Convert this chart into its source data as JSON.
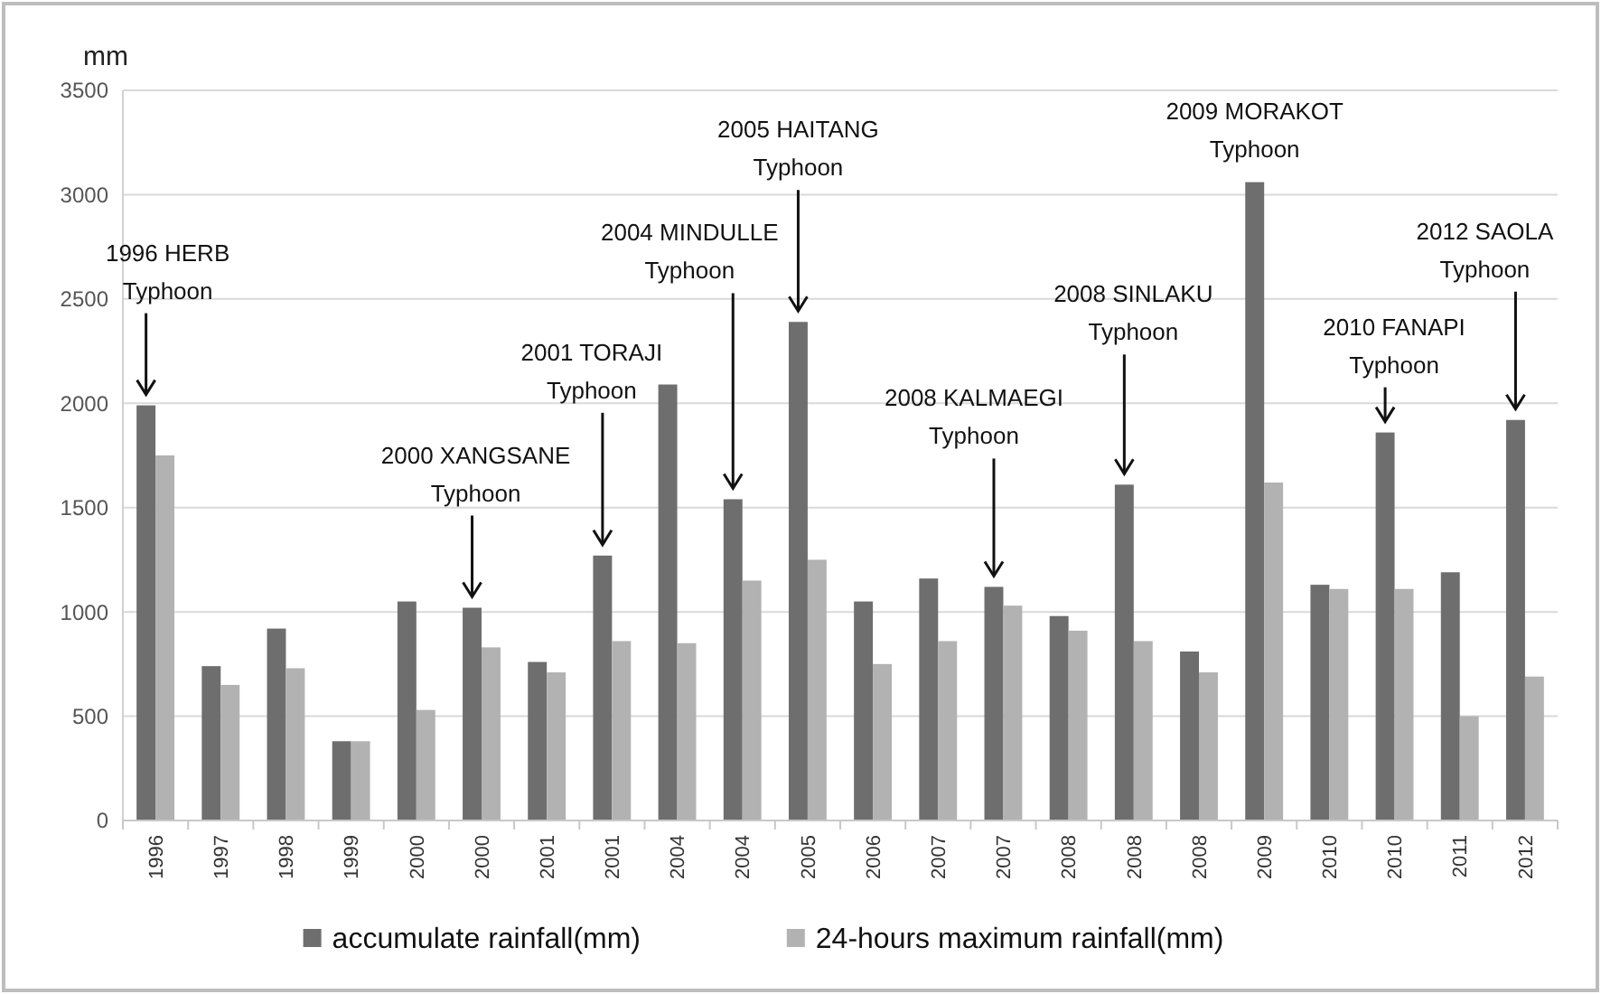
{
  "chart_data": {
    "type": "bar",
    "ylabel": "mm",
    "categories": [
      "1996",
      "1997",
      "1998",
      "1999",
      "2000",
      "2000",
      "2001",
      "2001",
      "2004",
      "2004",
      "2005",
      "2006",
      "2007",
      "2007",
      "2008",
      "2008",
      "2008",
      "2009",
      "2010",
      "2010",
      "2011",
      "2012"
    ],
    "series": [
      {
        "name": "accumulate rainfall(mm)",
        "color": "#6e6e6e",
        "values": [
          1990,
          740,
          920,
          380,
          1050,
          1020,
          760,
          1270,
          2090,
          1540,
          2390,
          1050,
          1160,
          1120,
          980,
          1610,
          810,
          3060,
          1130,
          1860,
          1190,
          1920
        ]
      },
      {
        "name": "24-hours maximum rainfall(mm)",
        "color": "#b2b2b2",
        "values": [
          1750,
          650,
          730,
          380,
          530,
          830,
          710,
          860,
          850,
          1150,
          1250,
          750,
          860,
          1030,
          910,
          860,
          710,
          1620,
          1110,
          1110,
          500,
          690
        ]
      }
    ],
    "ylim": [
      0,
      3500
    ],
    "yticks": [
      0,
      500,
      1000,
      1500,
      2000,
      2500,
      3000,
      3500
    ],
    "grid": "y",
    "legend": "bottom",
    "annotations": [
      "1996 HERB\nTyphoon",
      "2000 XANGSANE\nTyphoon",
      "2001 TORAJI\nTyphoon",
      "2004 MINDULLE\nTyphoon",
      "2005 HAITANG\nTyphoon",
      "2008 KALMAEGI\nTyphoon",
      "2008 SINLAKU\nTyphoon",
      "2009 MORAKOT\nTyphoon",
      "2010 FANAPI\nTyphoon",
      "2012 SAOLA\nTyphoon"
    ]
  }
}
